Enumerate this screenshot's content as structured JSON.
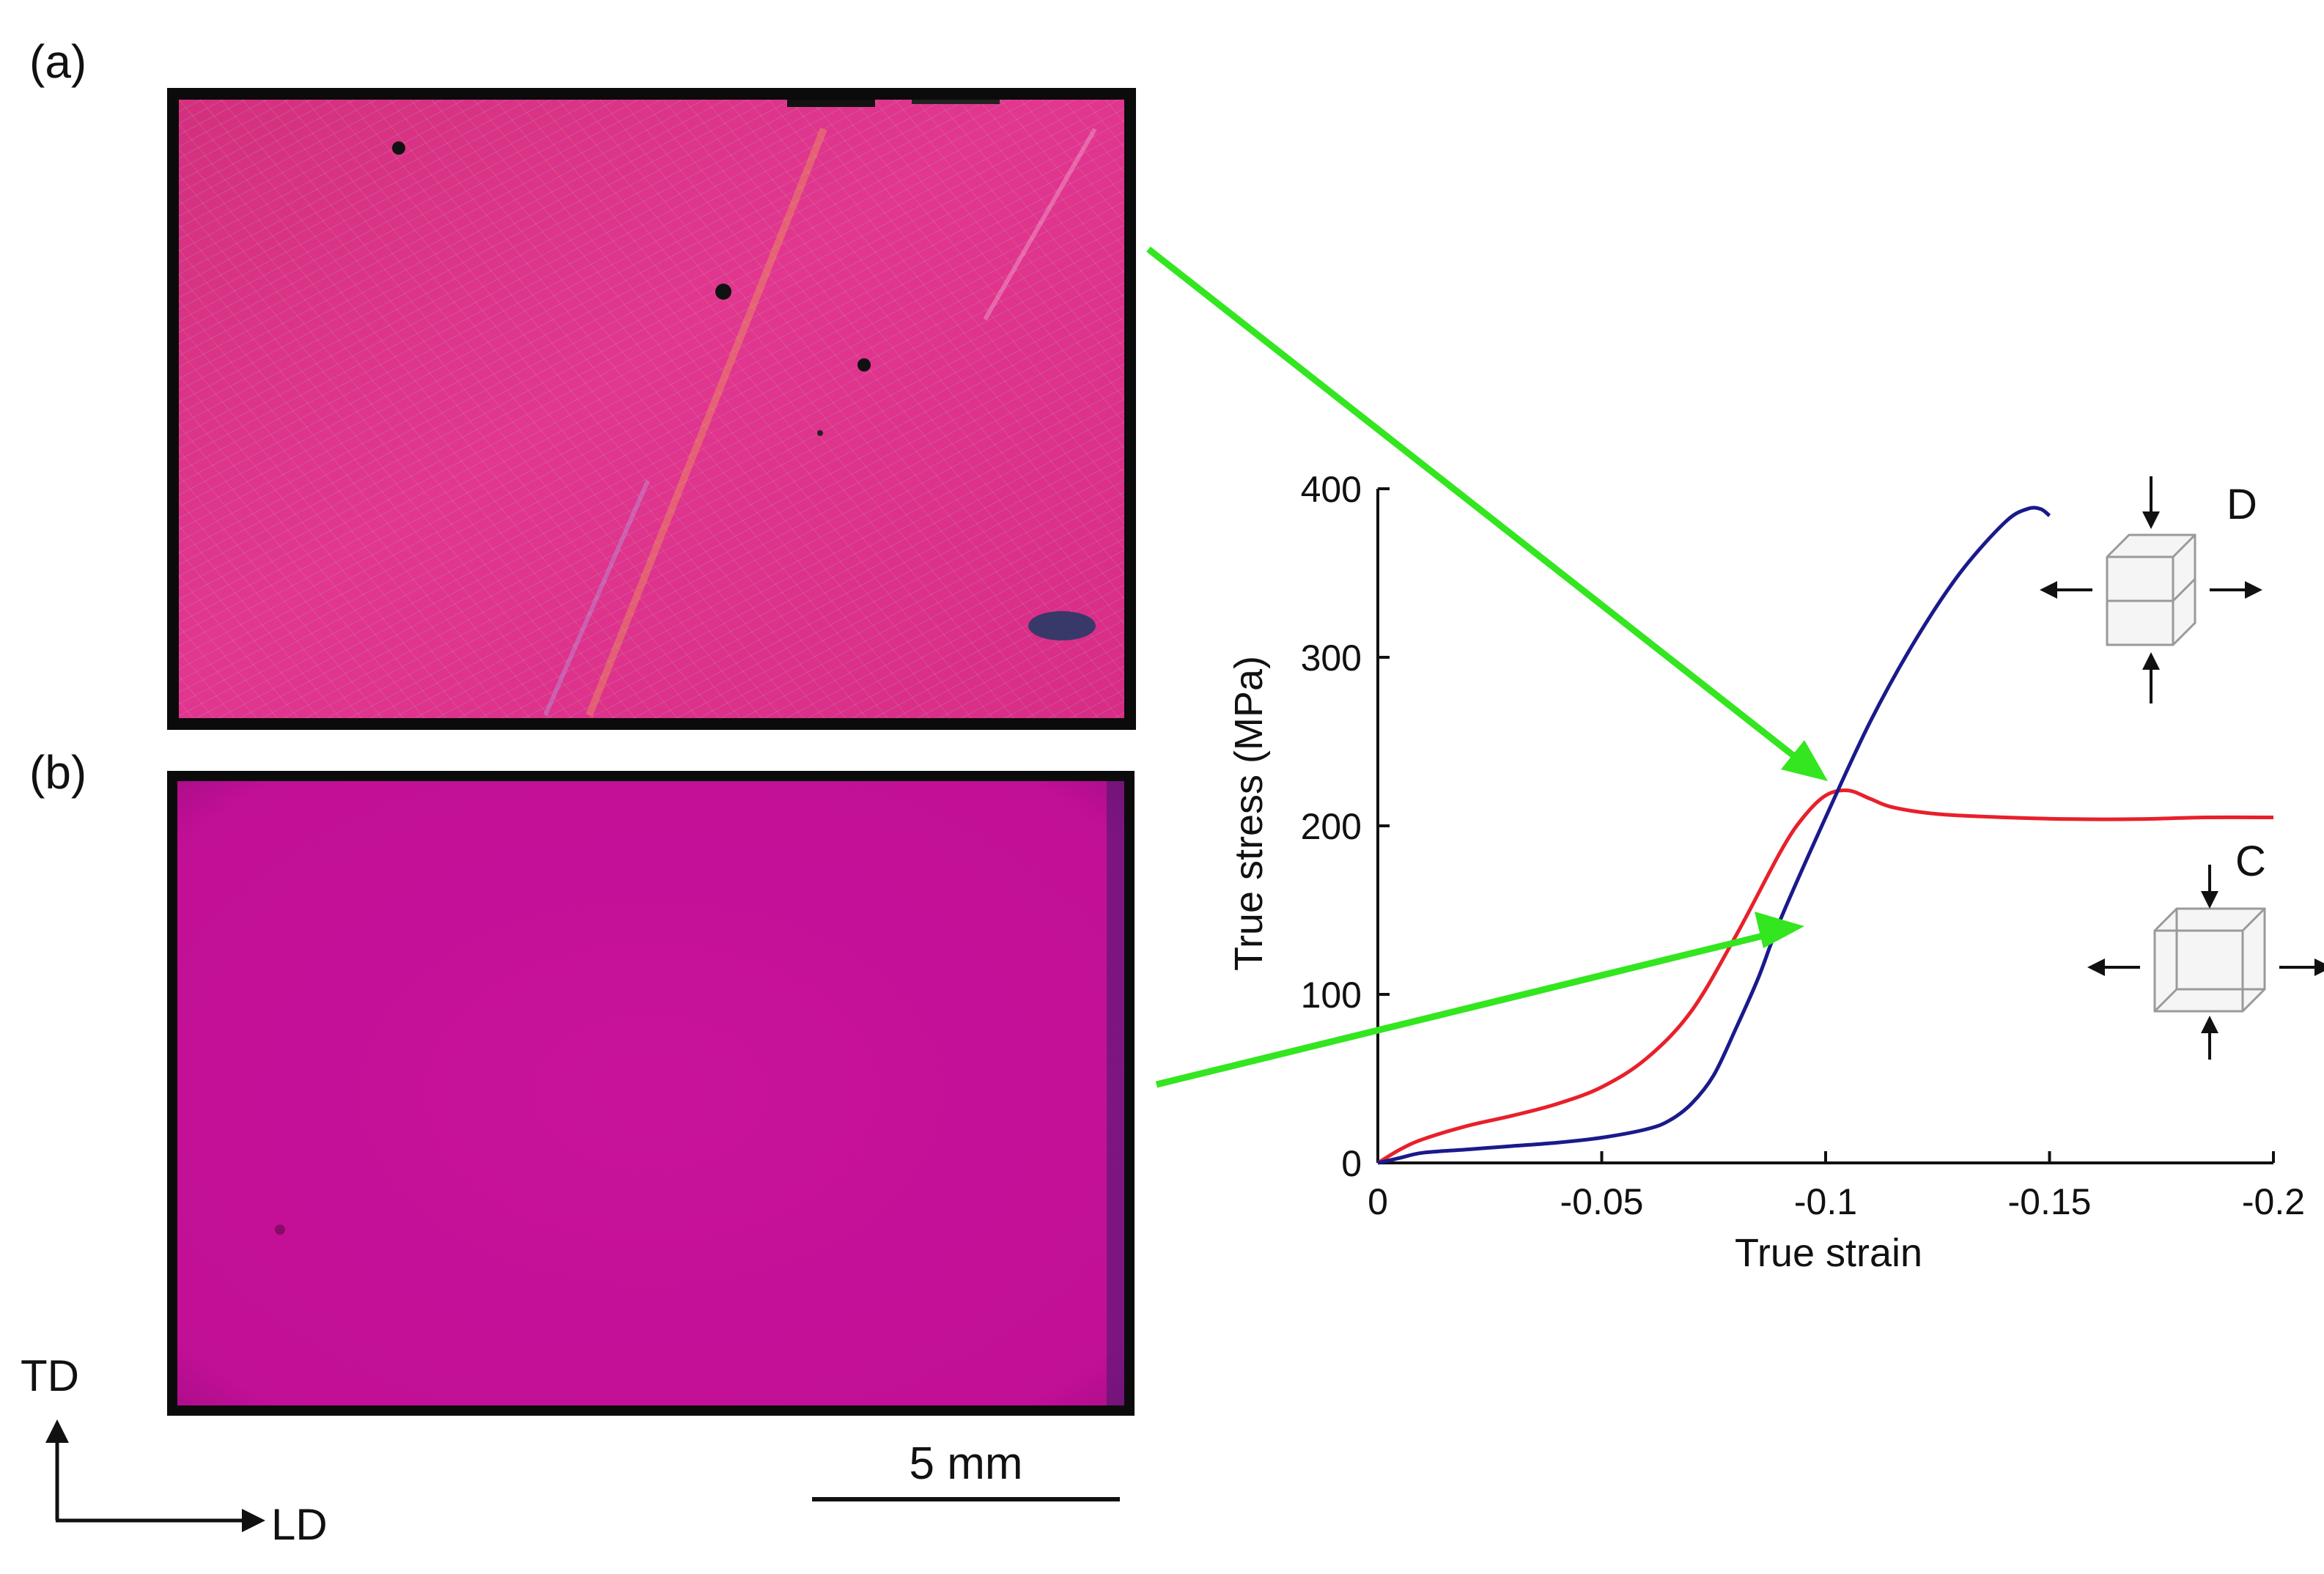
{
  "figure": {
    "panel_a_label": "(a)",
    "panel_b_label": "(b)",
    "scale_bar_label": "5 mm",
    "direction_vertical": "TD",
    "direction_horizontal": "LD",
    "inset_top_label": "D",
    "inset_bottom_label": "C",
    "colors": {
      "red_curve": "#e8202a",
      "blue_curve": "#1a1a8c",
      "arrow": "#33e61f",
      "panel_a_base": "#e0308f",
      "panel_b_base": "#c8129a"
    }
  },
  "chart_data": {
    "type": "line",
    "title": "",
    "xlabel": "True strain",
    "ylabel": "True stress (MPa)",
    "xlim": [
      0,
      -0.2
    ],
    "ylim": [
      0,
      400
    ],
    "xticks": [
      "0",
      "-0.05",
      "-0.1",
      "-0.15",
      "-0.2"
    ],
    "xtick_values": [
      0,
      -0.05,
      -0.1,
      -0.15,
      -0.2
    ],
    "yticks": [
      "0",
      "100",
      "200",
      "300",
      "400"
    ],
    "ytick_values": [
      0,
      100,
      200,
      300,
      400
    ],
    "grid": false,
    "series": [
      {
        "color": "#e8202a",
        "points": [
          [
            0,
            0
          ],
          [
            -0.005,
            8
          ],
          [
            -0.01,
            14
          ],
          [
            -0.02,
            22
          ],
          [
            -0.03,
            28
          ],
          [
            -0.04,
            35
          ],
          [
            -0.05,
            45
          ],
          [
            -0.06,
            62
          ],
          [
            -0.07,
            90
          ],
          [
            -0.08,
            135
          ],
          [
            -0.09,
            185
          ],
          [
            -0.095,
            205
          ],
          [
            -0.1,
            218
          ],
          [
            -0.105,
            221
          ],
          [
            -0.11,
            216
          ],
          [
            -0.115,
            211
          ],
          [
            -0.125,
            207
          ],
          [
            -0.14,
            205
          ],
          [
            -0.155,
            204
          ],
          [
            -0.17,
            204
          ],
          [
            -0.185,
            205
          ],
          [
            -0.2,
            205
          ]
        ]
      },
      {
        "color": "#1a1a8c",
        "points": [
          [
            0,
            0
          ],
          [
            -0.005,
            3
          ],
          [
            -0.01,
            6
          ],
          [
            -0.02,
            8
          ],
          [
            -0.03,
            10
          ],
          [
            -0.04,
            12
          ],
          [
            -0.05,
            15
          ],
          [
            -0.06,
            20
          ],
          [
            -0.065,
            25
          ],
          [
            -0.07,
            35
          ],
          [
            -0.075,
            52
          ],
          [
            -0.08,
            80
          ],
          [
            -0.085,
            110
          ],
          [
            -0.09,
            145
          ],
          [
            -0.1,
            205
          ],
          [
            -0.11,
            262
          ],
          [
            -0.12,
            310
          ],
          [
            -0.13,
            350
          ],
          [
            -0.14,
            380
          ],
          [
            -0.145,
            388
          ],
          [
            -0.148,
            388
          ],
          [
            -0.15,
            384
          ]
        ]
      }
    ]
  }
}
